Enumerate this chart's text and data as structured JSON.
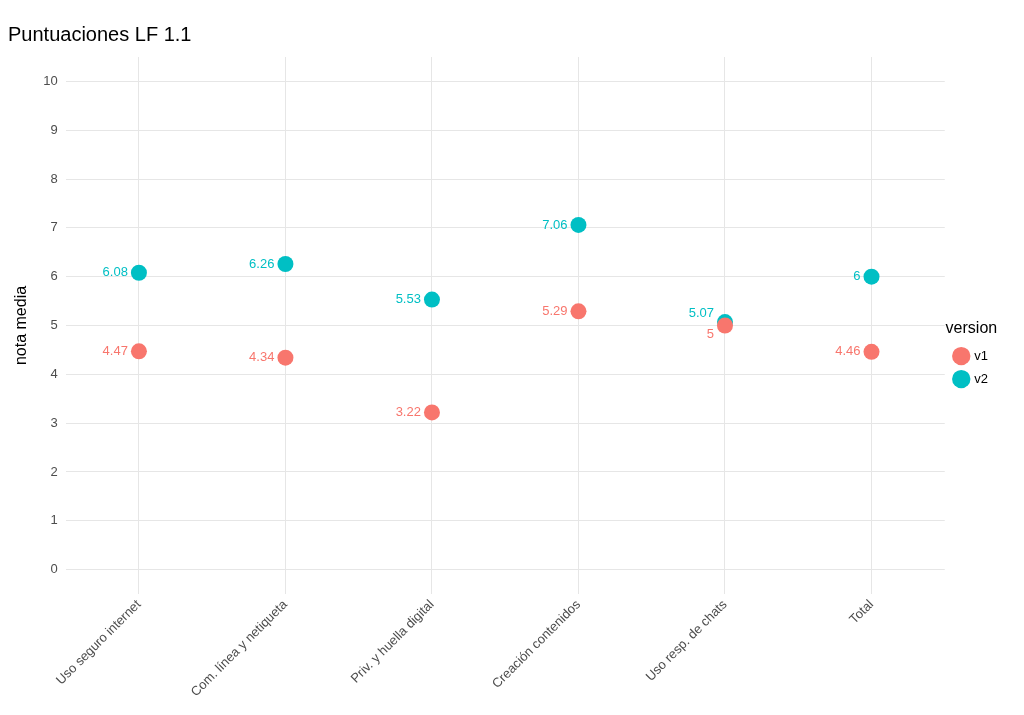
{
  "chart_data": {
    "type": "scatter",
    "title": "Puntuaciones LF 1.1",
    "ylabel": "nota media",
    "legend_title": "version",
    "categories": [
      "Uso seguro internet",
      "Com. línea y netiqueta",
      "Priv. y huella digital",
      "Creación contenidos",
      "Uso resp. de chats",
      "Total"
    ],
    "series": [
      {
        "name": "v1",
        "color": "#f8766d",
        "values": [
          4.47,
          4.34,
          3.22,
          5.29,
          5,
          4.46
        ]
      },
      {
        "name": "v2",
        "color": "#00bfc4",
        "values": [
          6.08,
          6.26,
          5.53,
          7.06,
          5.07,
          6
        ]
      }
    ],
    "ylim": [
      -0.5,
      10.5
    ],
    "yticks": [
      0,
      1,
      2,
      3,
      4,
      5,
      6,
      7,
      8,
      9,
      10
    ],
    "grid": true,
    "legend": "right",
    "marker": "circle",
    "data_labels": true
  }
}
